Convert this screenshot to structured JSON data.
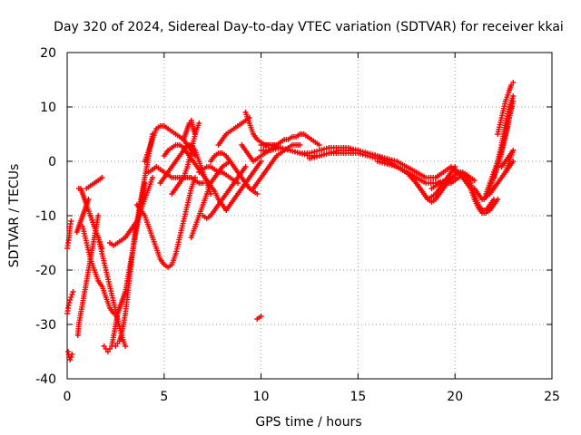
{
  "chart_data": {
    "type": "scatter",
    "title": "Day 320 of 2024, Sidereal Day-to-day VTEC variation (SDTVAR) for receiver kkai",
    "xlabel": "GPS time / hours",
    "ylabel": "SDTVAR / TECUs",
    "xlim": [
      0,
      25
    ],
    "ylim": [
      -40,
      20
    ],
    "xticks": [
      0,
      5,
      10,
      15,
      20,
      25
    ],
    "yticks": [
      -40,
      -30,
      -20,
      -10,
      0,
      10,
      20
    ],
    "grid": true,
    "marker": "+",
    "color": "#ff0000",
    "series": [
      {
        "name": "s1",
        "x": [
          0.05,
          0.1,
          0.15,
          0.2,
          0.25
        ],
        "y": [
          -35,
          -36,
          -36.5,
          -36,
          -35.5
        ]
      },
      {
        "name": "s2",
        "x": [
          0.0,
          0.05,
          0.1,
          0.15,
          0.2,
          0.25,
          0.3
        ],
        "y": [
          -28,
          -27,
          -26,
          -25.5,
          -25,
          -24.5,
          -24
        ]
      },
      {
        "name": "s3",
        "x": [
          0.0,
          0.05,
          0.1,
          0.15,
          0.2
        ],
        "y": [
          -16,
          -15,
          -14,
          -12,
          -11
        ]
      },
      {
        "name": "s4",
        "x": [
          0.55,
          0.6,
          0.7,
          0.8,
          0.9,
          1.0,
          1.1,
          1.2,
          1.3,
          1.4,
          1.5,
          1.6
        ],
        "y": [
          -32,
          -30,
          -28,
          -26,
          -24,
          -22,
          -20,
          -18,
          -16,
          -14,
          -12,
          -10
        ]
      },
      {
        "name": "s5",
        "x": [
          0.5,
          0.6,
          0.7,
          0.8,
          0.9,
          1.0,
          1.1
        ],
        "y": [
          -13,
          -12,
          -11,
          -10,
          -9,
          -8,
          -7
        ]
      },
      {
        "name": "s6",
        "x": [
          0.6,
          0.7,
          0.8,
          0.9,
          1.0,
          1.2,
          1.4,
          1.6,
          1.8
        ],
        "y": [
          -5,
          -5,
          -6,
          -7,
          -8,
          -10,
          -12,
          -14,
          -16
        ]
      },
      {
        "name": "s7",
        "x": [
          1.0,
          1.2,
          1.4,
          1.6,
          1.8
        ],
        "y": [
          -5,
          -4.5,
          -4,
          -3.5,
          -3
        ]
      },
      {
        "name": "s8",
        "x": [
          1.2,
          1.4,
          1.6,
          1.8,
          2.0,
          2.2,
          2.4,
          2.6,
          2.8,
          3.0
        ],
        "y": [
          -10,
          -12,
          -14,
          -17,
          -20,
          -23,
          -26,
          -29,
          -32,
          -34
        ]
      },
      {
        "name": "s9",
        "x": [
          0.8,
          1.0,
          1.2,
          1.4,
          1.6,
          1.8,
          2.0,
          2.2,
          2.4
        ],
        "y": [
          -12,
          -15,
          -18,
          -20,
          -22,
          -23,
          -25,
          -27,
          -28
        ]
      },
      {
        "name": "s10",
        "x": [
          1.9,
          2.0,
          2.1,
          2.2,
          2.3,
          2.4,
          2.5,
          2.6,
          2.7,
          2.8,
          2.9,
          3.0,
          3.1,
          3.2,
          3.3,
          3.4,
          3.5,
          3.6,
          3.7,
          3.8,
          3.9,
          4.0
        ],
        "y": [
          -34,
          -34.5,
          -35,
          -34.5,
          -34,
          -32,
          -30,
          -28,
          -27,
          -26,
          -25,
          -24,
          -22,
          -20,
          -18,
          -16,
          -14,
          -12,
          -10,
          -8,
          -6,
          -4
        ]
      },
      {
        "name": "s11",
        "x": [
          2.5,
          2.6,
          2.7,
          2.8,
          2.9,
          3.0,
          3.1,
          3.2,
          3.3,
          3.4,
          3.5,
          3.6,
          3.7,
          3.8,
          3.9,
          4.0,
          4.1,
          4.2,
          4.3,
          4.4
        ],
        "y": [
          -34,
          -33.5,
          -33,
          -32,
          -30,
          -28,
          -25,
          -22,
          -19,
          -16,
          -13,
          -11,
          -9,
          -7,
          -5,
          -3,
          -1,
          1,
          3,
          5
        ]
      },
      {
        "name": "s12",
        "x": [
          2.2,
          2.4,
          2.6,
          2.8,
          3.0,
          3.2,
          3.4,
          3.6,
          3.8,
          4.0,
          4.2,
          4.4
        ],
        "y": [
          -15,
          -15.5,
          -15,
          -14.5,
          -14,
          -13,
          -12,
          -11,
          -9,
          -7,
          -5,
          -3
        ]
      },
      {
        "name": "s13",
        "x": [
          3.6,
          3.8,
          4.0,
          4.2,
          4.4,
          4.6,
          4.8,
          5.0,
          5.2,
          5.4,
          5.6,
          5.8,
          6.0,
          6.2,
          6.4,
          6.6
        ],
        "y": [
          -8,
          -9,
          -10,
          -12,
          -14,
          -16,
          -18,
          -19,
          -19.5,
          -19,
          -17,
          -14,
          -11,
          -8,
          -5,
          -3
        ]
      },
      {
        "name": "s14",
        "x": [
          4.0,
          4.2,
          4.4,
          4.6,
          4.8,
          5.0,
          5.2,
          5.4,
          5.6,
          5.8,
          6.0,
          6.2,
          6.4,
          6.6
        ],
        "y": [
          0,
          2,
          4,
          6,
          6.5,
          6.5,
          6,
          5.5,
          5,
          4.5,
          4,
          3,
          2,
          1
        ]
      },
      {
        "name": "s15",
        "x": [
          4.2,
          4.4,
          4.6,
          4.8,
          5.0,
          5.2,
          5.4,
          5.6,
          5.8,
          6.0,
          6.2,
          6.4,
          6.6,
          6.8,
          7.0
        ],
        "y": [
          -2,
          -1.5,
          -1,
          -1.5,
          -2,
          -2.5,
          -3,
          -3,
          -3,
          -3,
          -3,
          -3,
          -3.5,
          -4,
          -4
        ]
      },
      {
        "name": "s16",
        "x": [
          4.8,
          5.0,
          5.2,
          5.4,
          5.6,
          5.8,
          6.0,
          6.2,
          6.4,
          6.6,
          6.8,
          7.0,
          7.2,
          7.4
        ],
        "y": [
          -4,
          -3,
          -2,
          -1,
          0,
          1,
          2,
          3,
          3,
          2,
          0,
          -2,
          -4,
          -6
        ]
      },
      {
        "name": "s17",
        "x": [
          5.0,
          5.2,
          5.4,
          5.6,
          5.8,
          6.0,
          6.2,
          6.4,
          6.6,
          6.8,
          7.0,
          7.2,
          7.4,
          7.6,
          7.8,
          8.0,
          8.2
        ],
        "y": [
          1,
          2,
          2.5,
          3,
          3,
          2.5,
          1.5,
          0.5,
          -0.5,
          -1.5,
          -2.5,
          -3.5,
          -4.5,
          -5.5,
          -7,
          -8,
          -9
        ]
      },
      {
        "name": "s18",
        "x": [
          5.4,
          5.6,
          5.8,
          6.0,
          6.2,
          6.4,
          6.6,
          6.8
        ],
        "y": [
          -6,
          -5,
          -4,
          -3,
          -1,
          2,
          5,
          7
        ]
      },
      {
        "name": "s19",
        "x": [
          6.0,
          6.1,
          6.2,
          6.3,
          6.4,
          6.5,
          6.6
        ],
        "y": [
          4,
          5,
          6,
          7,
          7.5,
          6,
          5
        ]
      },
      {
        "name": "s20",
        "x": [
          6.4,
          6.6,
          6.8,
          7.0,
          7.2,
          7.4,
          7.6,
          7.8,
          8.0,
          8.2,
          8.4
        ],
        "y": [
          -14,
          -12,
          -10,
          -8,
          -6,
          -4,
          -3,
          -2,
          -1,
          -0.5,
          0
        ]
      },
      {
        "name": "s21",
        "x": [
          6.8,
          7.0,
          7.2,
          7.4,
          7.6,
          7.8,
          8.0,
          8.2,
          8.4,
          8.6,
          8.8
        ],
        "y": [
          -2,
          -1.5,
          -1,
          -1,
          -1.5,
          -2,
          -2,
          -2.5,
          -3,
          -3.5,
          -4
        ]
      },
      {
        "name": "s22",
        "x": [
          7.0,
          7.2,
          7.4,
          7.6,
          7.8,
          8.0,
          8.2,
          8.4,
          8.6,
          8.8,
          9.0,
          9.2
        ],
        "y": [
          -10,
          -10.5,
          -10,
          -9,
          -8,
          -7,
          -6,
          -5,
          -4,
          -3,
          -2,
          -1
        ]
      },
      {
        "name": "s23",
        "x": [
          7.4,
          7.6,
          7.8,
          8.0,
          8.2,
          8.4,
          8.6,
          8.8,
          9.0,
          9.2,
          9.4,
          9.6,
          9.8
        ],
        "y": [
          0,
          1,
          1.5,
          1.5,
          1,
          0,
          -1,
          -2,
          -3,
          -4,
          -5,
          -5.5,
          -6
        ]
      },
      {
        "name": "s24",
        "x": [
          8.2,
          8.4,
          8.6,
          8.8,
          9.0,
          9.2,
          9.4,
          9.6,
          9.8,
          10.0
        ],
        "y": [
          -9,
          -8,
          -7,
          -6,
          -5,
          -4,
          -3,
          -2,
          -1,
          0
        ]
      },
      {
        "name": "s25",
        "x": [
          7.8,
          8.0,
          8.2,
          8.4,
          8.6,
          8.8,
          9.0,
          9.2,
          9.4
        ],
        "y": [
          3,
          4,
          5,
          5.5,
          6,
          6.5,
          7,
          7.5,
          8
        ]
      },
      {
        "name": "s26",
        "x": [
          9.0,
          9.2,
          9.4,
          9.6,
          9.8,
          10.0,
          10.2,
          10.4,
          10.6,
          10.8
        ],
        "y": [
          3,
          2,
          1,
          0,
          0.5,
          1,
          1.5,
          2,
          2.5,
          3
        ]
      },
      {
        "name": "s27",
        "x": [
          9.2,
          9.4,
          9.6,
          9.8,
          10.0,
          10.2,
          10.4,
          10.6,
          10.8,
          11.0,
          11.2,
          11.4,
          11.6,
          11.8,
          12.0,
          12.2,
          12.4,
          12.6,
          12.8,
          13.0
        ],
        "y": [
          9,
          7,
          5,
          4,
          3.5,
          3,
          3,
          3,
          3,
          3.5,
          4,
          4,
          4.5,
          4.5,
          5,
          5,
          4.5,
          4,
          3.5,
          3
        ]
      },
      {
        "name": "s28",
        "x": [
          9.6,
          9.8,
          10.0,
          10.2,
          10.4,
          10.6,
          10.8,
          11.0,
          11.2,
          11.4,
          11.6,
          11.8,
          12.0
        ],
        "y": [
          -5,
          -4,
          -3,
          -2,
          -1,
          0,
          1,
          1.5,
          2,
          2.5,
          3,
          3,
          3
        ]
      },
      {
        "name": "s29",
        "x": [
          9.8,
          10.0
        ],
        "y": [
          -29,
          -28.5
        ]
      },
      {
        "name": "s30",
        "x": [
          10.0,
          10.5,
          11.0,
          11.5,
          12.0,
          12.5,
          13.0,
          13.5,
          14.0,
          14.5,
          15.0,
          15.5,
          16.0,
          16.5,
          17.0,
          17.5,
          18.0
        ],
        "y": [
          2,
          2,
          2.5,
          2,
          1.5,
          1.5,
          2,
          2.5,
          2.5,
          2.5,
          2,
          1.5,
          1,
          0,
          -1,
          -2,
          -3
        ]
      },
      {
        "name": "s31",
        "x": [
          10.0,
          10.5,
          11.0,
          11.5,
          12.0,
          12.5,
          13.0,
          13.5,
          14.0,
          14.5,
          15.0,
          15.5,
          16.0,
          16.5,
          17.0,
          17.5,
          18.0,
          18.5,
          19.0
        ],
        "y": [
          3,
          3,
          2.5,
          2,
          1.5,
          1,
          1,
          1.5,
          2,
          2,
          2,
          1.5,
          1,
          0.5,
          0,
          -1,
          -2,
          -3,
          -3
        ]
      },
      {
        "name": "s32",
        "x": [
          12.5,
          13.0,
          13.5,
          14.0,
          14.5,
          15.0,
          15.5,
          16.0,
          16.5,
          17.0,
          17.5,
          18.0,
          18.5,
          19.0,
          19.5,
          20.0
        ],
        "y": [
          0.5,
          1,
          1.5,
          1.5,
          1.5,
          1.5,
          1,
          0.5,
          0,
          -1,
          -2,
          -3,
          -4,
          -4,
          -3.5,
          -3
        ]
      },
      {
        "name": "s33",
        "x": [
          16.0,
          16.5,
          17.0,
          17.5,
          18.0,
          18.2,
          18.4,
          18.6,
          18.8,
          19.0,
          19.2,
          19.4,
          19.6,
          19.8,
          20.0
        ],
        "y": [
          0,
          -0.5,
          -1,
          -2,
          -4,
          -5,
          -6,
          -7,
          -6.5,
          -6,
          -5,
          -4,
          -3,
          -2,
          -1
        ]
      },
      {
        "name": "s34",
        "x": [
          17.0,
          17.5,
          18.0,
          18.2,
          18.4,
          18.6,
          18.8,
          19.0,
          19.2,
          19.4,
          19.6,
          19.8,
          20.0,
          20.2,
          20.4,
          20.6
        ],
        "y": [
          -1,
          -2,
          -4,
          -5,
          -6,
          -7,
          -7.5,
          -7,
          -6,
          -5,
          -4,
          -3,
          -2.5,
          -2,
          -2,
          -2.5
        ]
      },
      {
        "name": "s35",
        "x": [
          18.8,
          19.0,
          19.2,
          19.4,
          19.6,
          19.8,
          20.0,
          20.2,
          20.4,
          20.6,
          20.8,
          21.0
        ],
        "y": [
          -5,
          -4.5,
          -4,
          -4,
          -4,
          -4,
          -3.5,
          -3,
          -2.5,
          -2.5,
          -3,
          -3.5
        ]
      },
      {
        "name": "s36",
        "x": [
          19.0,
          19.2,
          19.4,
          19.6,
          19.8,
          20.0,
          20.2,
          20.4,
          20.6,
          20.8,
          21.0,
          21.2,
          21.4,
          21.6,
          21.8,
          22.0
        ],
        "y": [
          -3,
          -2.5,
          -2,
          -1.5,
          -1,
          -1.5,
          -2,
          -2.5,
          -3,
          -4,
          -6,
          -8,
          -9,
          -9,
          -8,
          -7
        ]
      },
      {
        "name": "s37",
        "x": [
          20.0,
          20.2,
          20.4,
          20.6,
          20.8,
          21.0,
          21.2,
          21.4,
          21.6,
          21.8,
          22.0,
          22.2
        ],
        "y": [
          -2,
          -2.5,
          -3,
          -4,
          -5,
          -7,
          -8.5,
          -9.5,
          -9.5,
          -9,
          -8,
          -7
        ]
      },
      {
        "name": "s38",
        "x": [
          21.0,
          21.2,
          21.4,
          21.6,
          21.8,
          22.0,
          22.2,
          22.4,
          22.6,
          22.8,
          23.0
        ],
        "y": [
          -5,
          -6,
          -7,
          -6.5,
          -6,
          -5,
          -4,
          -3,
          -2,
          -1,
          0
        ]
      },
      {
        "name": "s39",
        "x": [
          21.5,
          21.7,
          21.9,
          22.1,
          22.3,
          22.5,
          22.7,
          22.9
        ],
        "y": [
          -7,
          -6,
          -4,
          -2,
          0,
          3,
          6,
          10
        ]
      },
      {
        "name": "s40",
        "x": [
          21.6,
          21.8,
          22.0,
          22.2,
          22.4,
          22.6,
          22.8,
          23.0
        ],
        "y": [
          -6,
          -4,
          -2,
          0,
          2,
          5,
          8,
          11
        ]
      },
      {
        "name": "s41",
        "x": [
          22.0,
          22.2,
          22.4,
          22.6,
          22.8,
          23.0
        ],
        "y": [
          -3,
          0,
          3,
          7,
          10,
          12
        ]
      },
      {
        "name": "s42",
        "x": [
          22.2,
          22.4,
          22.6,
          22.8,
          22.9,
          23.0
        ],
        "y": [
          5,
          8,
          11,
          13,
          14,
          14.5
        ]
      },
      {
        "name": "s43",
        "x": [
          22.4,
          22.6,
          22.8,
          23.0
        ],
        "y": [
          -1,
          0,
          1,
          2
        ]
      },
      {
        "name": "s44",
        "x": [
          22.6,
          22.8,
          23.0
        ],
        "y": [
          -2,
          0,
          2
        ]
      }
    ]
  }
}
